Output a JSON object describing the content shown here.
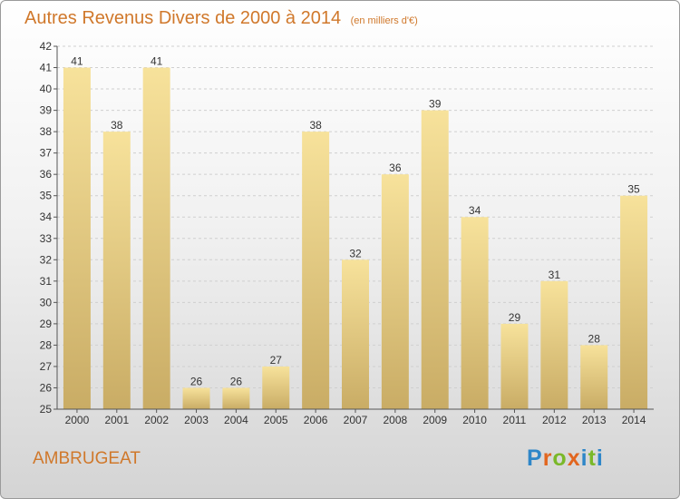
{
  "title": "Autres Revenus Divers de 2000 à 2014",
  "title_unit": "(en milliers d'€)",
  "commune": "AMBRUGEAT",
  "logo": {
    "text": "Proxiti",
    "letter_colors": [
      "#2e86c8",
      "#e2661f",
      "#7ab829",
      "#e2661f",
      "#2e86c8",
      "#7ab829",
      "#2e86c8"
    ]
  },
  "colors": {
    "title": "#d0782b",
    "bar_light": "#f7e29b",
    "bar_dark": "#c9ac65",
    "axis": "#555555",
    "grid": "#cfcfcf"
  },
  "chart_data": {
    "type": "bar",
    "title": "Autres Revenus Divers de 2000 à 2014",
    "categories": [
      "2000",
      "2001",
      "2002",
      "2003",
      "2004",
      "2005",
      "2006",
      "2007",
      "2008",
      "2009",
      "2010",
      "2011",
      "2012",
      "2013",
      "2014"
    ],
    "values": [
      41,
      38,
      41,
      26,
      26,
      27,
      38,
      32,
      36,
      39,
      34,
      29,
      31,
      28,
      35
    ],
    "ylim": [
      25,
      42
    ],
    "yticks": [
      25,
      26,
      27,
      28,
      29,
      30,
      31,
      32,
      33,
      34,
      35,
      36,
      37,
      38,
      39,
      40,
      41,
      42
    ],
    "grid": "horizontal",
    "data_labels": true
  }
}
